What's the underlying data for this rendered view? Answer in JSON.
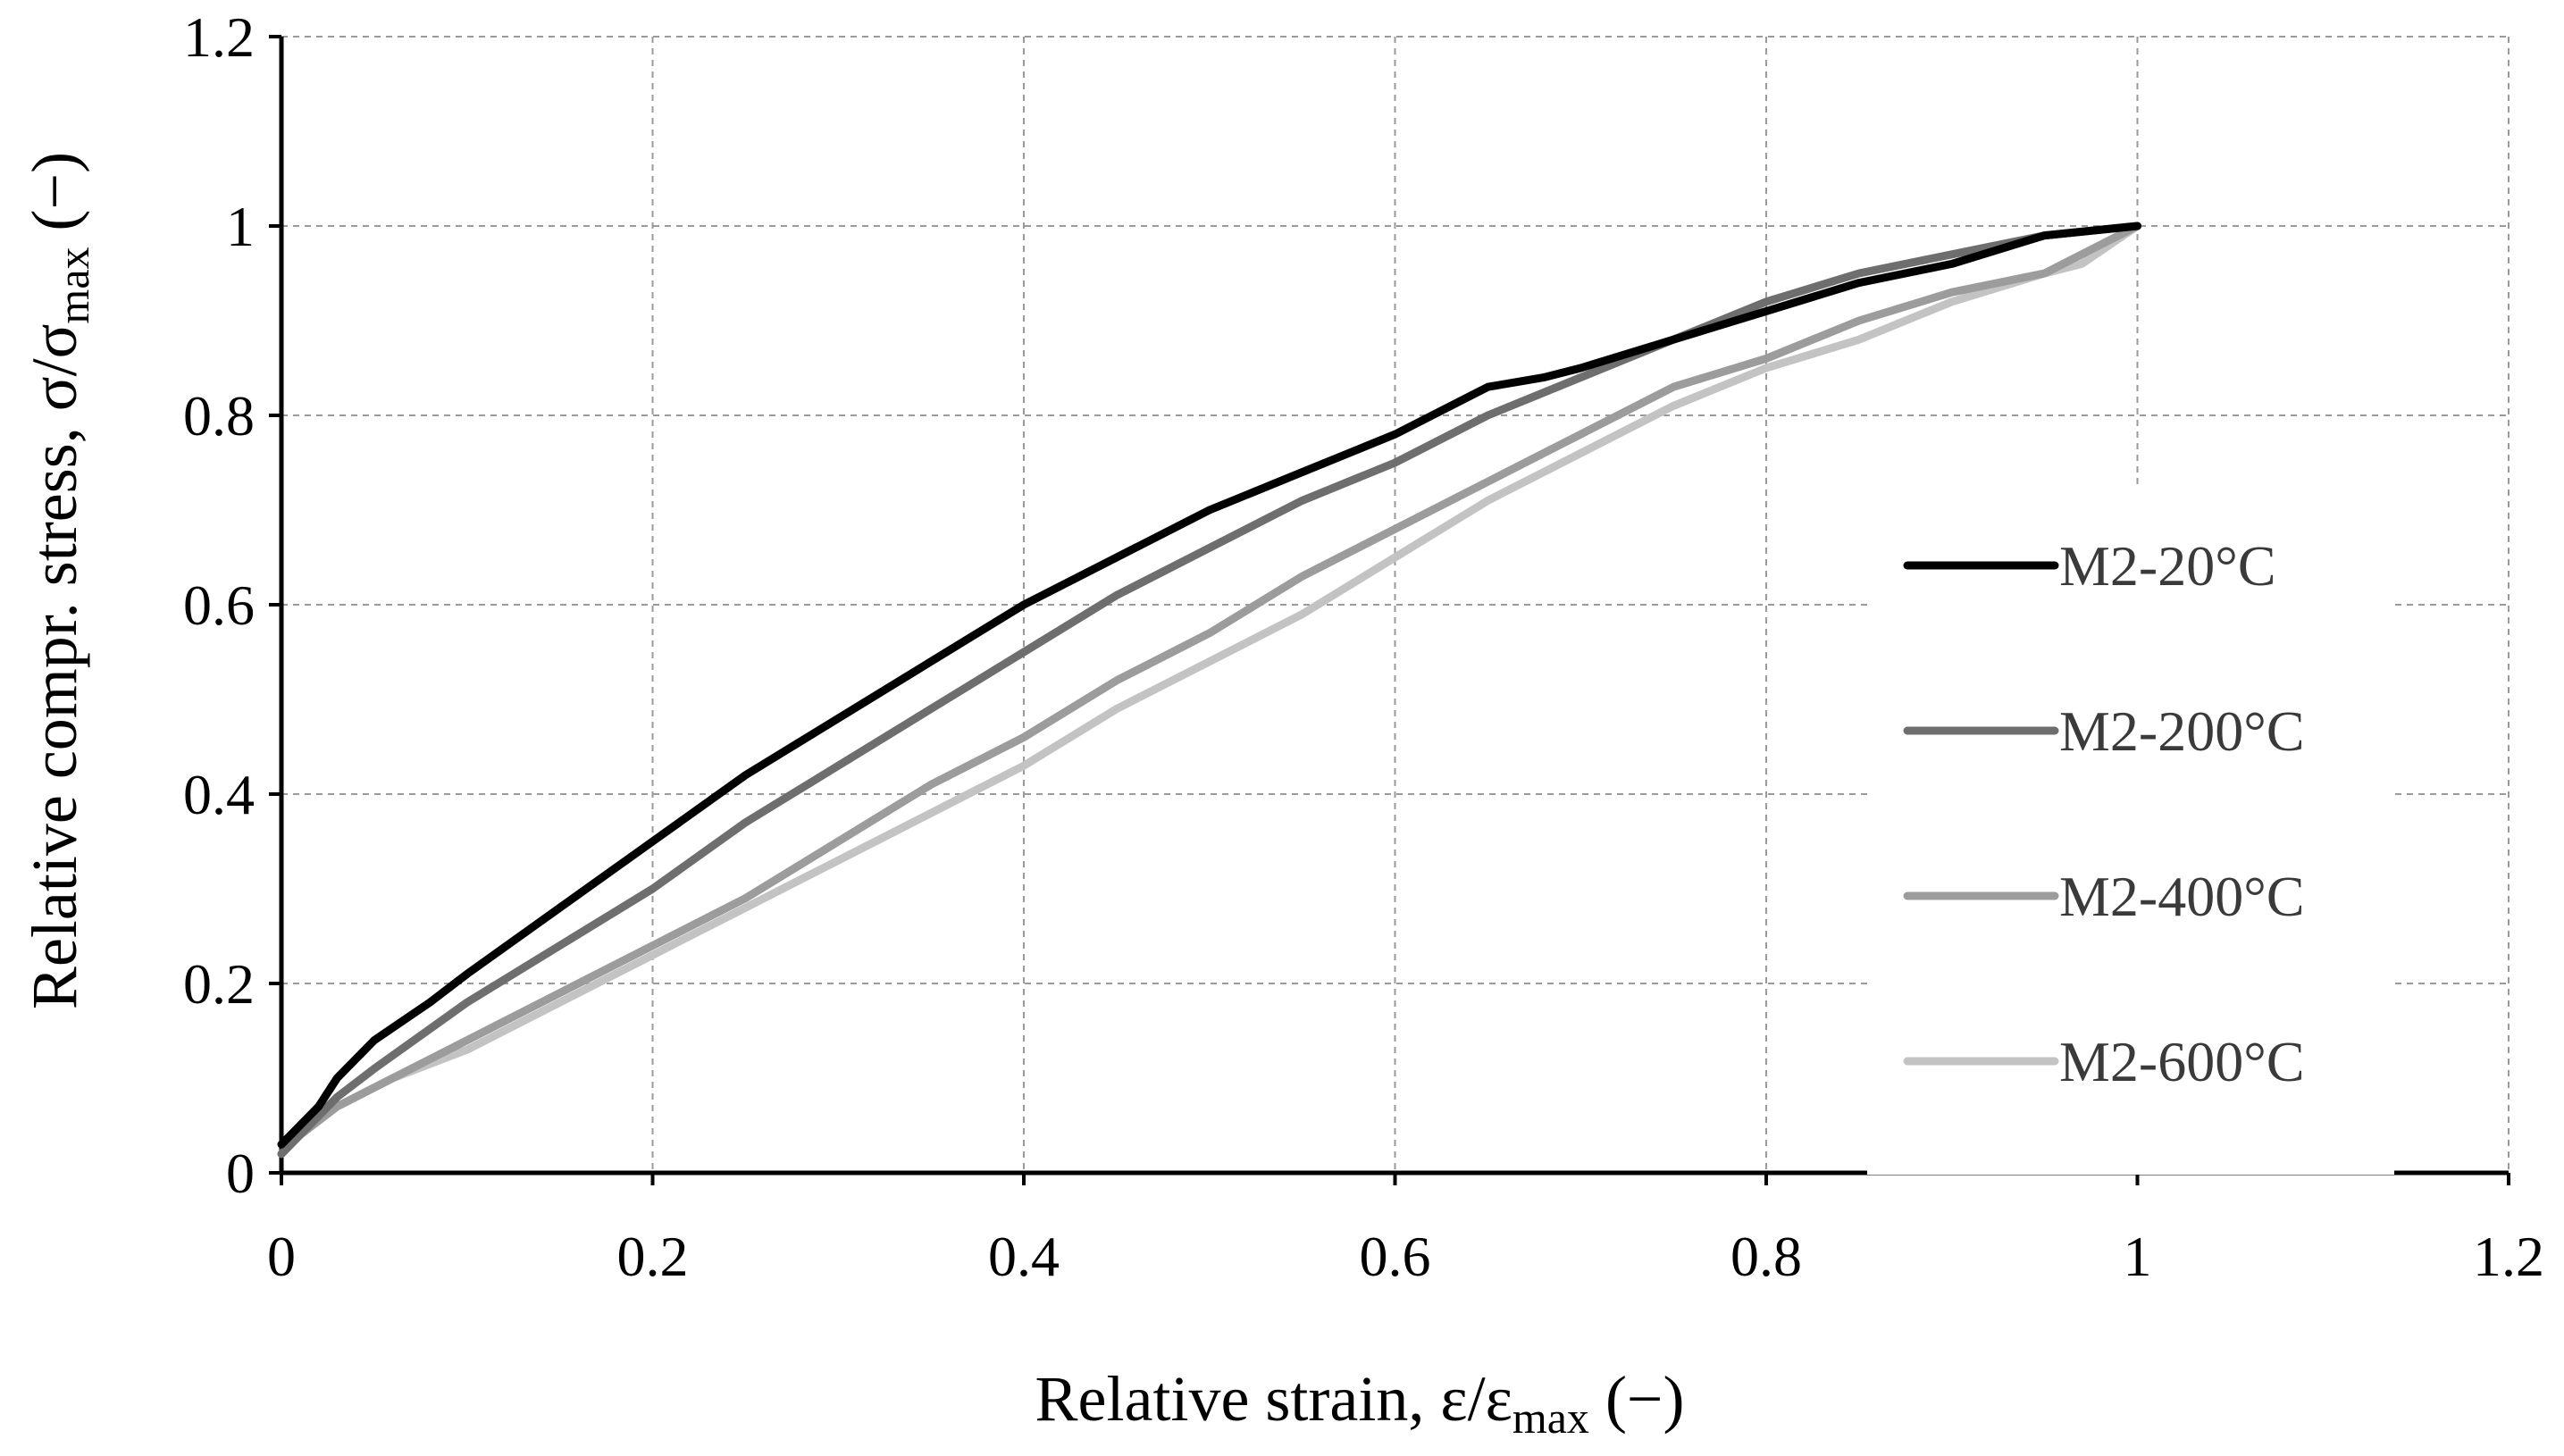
{
  "chart_data": {
    "type": "line",
    "xlabel": "Relative strain, ε/ε",
    "xlabel_sub": "max",
    "xlabel_tail": " (−)",
    "ylabel": "Relative compr. stress, σ/σ",
    "ylabel_sub": "max",
    "ylabel_tail": " (−)",
    "xlim": [
      0,
      1.2
    ],
    "ylim": [
      0,
      1.2
    ],
    "x_ticks": [
      "0",
      "0.2",
      "0.4",
      "0.6",
      "0.8",
      "1",
      "1.2"
    ],
    "y_ticks": [
      "0",
      "0.2",
      "0.4",
      "0.6",
      "0.8",
      "1",
      "1.2"
    ],
    "grid": true,
    "legend_position": "right",
    "series": [
      {
        "name": "M2-20°C",
        "color": "#000000",
        "x": [
          0,
          0.01,
          0.02,
          0.03,
          0.05,
          0.08,
          0.1,
          0.15,
          0.2,
          0.25,
          0.3,
          0.35,
          0.4,
          0.45,
          0.5,
          0.55,
          0.6,
          0.65,
          0.68,
          0.7,
          0.75,
          0.8,
          0.85,
          0.9,
          0.95,
          1.0
        ],
        "y": [
          0.03,
          0.05,
          0.07,
          0.1,
          0.14,
          0.18,
          0.21,
          0.28,
          0.35,
          0.42,
          0.48,
          0.54,
          0.6,
          0.65,
          0.7,
          0.74,
          0.78,
          0.83,
          0.84,
          0.85,
          0.88,
          0.91,
          0.94,
          0.96,
          0.99,
          1.0
        ]
      },
      {
        "name": "M2-200°C",
        "color": "#6e6e6e",
        "x": [
          0,
          0.01,
          0.03,
          0.05,
          0.1,
          0.15,
          0.2,
          0.25,
          0.3,
          0.35,
          0.4,
          0.45,
          0.5,
          0.55,
          0.6,
          0.65,
          0.7,
          0.75,
          0.8,
          0.85,
          0.9,
          0.95,
          1.0
        ],
        "y": [
          0.02,
          0.04,
          0.08,
          0.11,
          0.18,
          0.24,
          0.3,
          0.37,
          0.43,
          0.49,
          0.55,
          0.61,
          0.66,
          0.71,
          0.75,
          0.8,
          0.84,
          0.88,
          0.92,
          0.95,
          0.97,
          0.99,
          1.0
        ]
      },
      {
        "name": "M2-400°C",
        "color": "#9c9c9c",
        "x": [
          0,
          0.01,
          0.03,
          0.06,
          0.1,
          0.15,
          0.2,
          0.25,
          0.3,
          0.35,
          0.4,
          0.45,
          0.5,
          0.55,
          0.6,
          0.65,
          0.7,
          0.75,
          0.8,
          0.85,
          0.9,
          0.95,
          0.97,
          1.0
        ],
        "y": [
          0.02,
          0.04,
          0.07,
          0.1,
          0.14,
          0.19,
          0.24,
          0.29,
          0.35,
          0.41,
          0.46,
          0.52,
          0.57,
          0.63,
          0.68,
          0.73,
          0.78,
          0.83,
          0.86,
          0.9,
          0.93,
          0.95,
          0.97,
          1.0
        ]
      },
      {
        "name": "M2-600°C",
        "color": "#c3c3c3",
        "x": [
          0,
          0.01,
          0.03,
          0.06,
          0.1,
          0.15,
          0.2,
          0.25,
          0.3,
          0.35,
          0.4,
          0.45,
          0.5,
          0.55,
          0.6,
          0.65,
          0.7,
          0.75,
          0.8,
          0.85,
          0.9,
          0.95,
          0.97,
          1.0
        ],
        "y": [
          0.02,
          0.04,
          0.07,
          0.1,
          0.13,
          0.18,
          0.23,
          0.28,
          0.33,
          0.38,
          0.43,
          0.49,
          0.54,
          0.59,
          0.65,
          0.71,
          0.76,
          0.81,
          0.85,
          0.88,
          0.92,
          0.95,
          0.96,
          1.0
        ]
      }
    ]
  }
}
